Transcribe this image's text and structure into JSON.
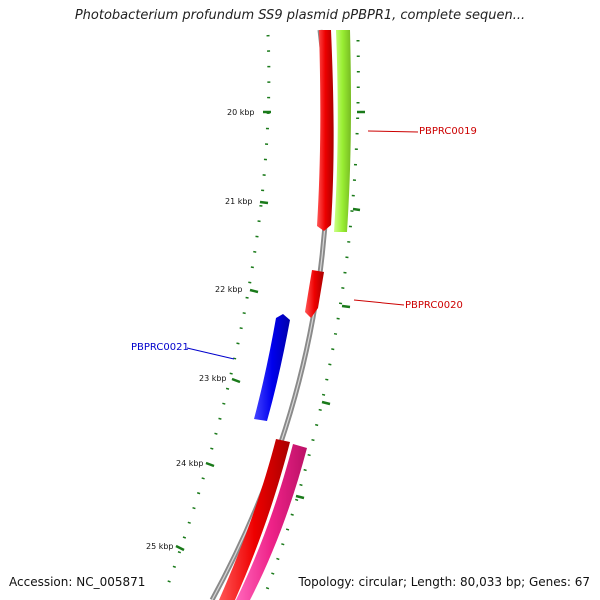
{
  "title": "Photobacterium profundum SS9 plasmid pPBPR1, complete sequen...",
  "accession": "Accession: NC_005871",
  "topology": "Topology: circular; Length: 80,033 bp; Genes: 67",
  "ticks": [
    {
      "label": "20 kbp"
    },
    {
      "label": "21 kbp"
    },
    {
      "label": "22 kbp"
    },
    {
      "label": "23 kbp"
    },
    {
      "label": "24 kbp"
    },
    {
      "label": "25 kbp"
    }
  ],
  "genes": [
    {
      "label": "PBPRC0019",
      "color": "#cc0000"
    },
    {
      "label": "PBPRC0020",
      "color": "#cc0000"
    },
    {
      "label": "PBPRC0021",
      "color": "#0000cc"
    }
  ],
  "colors": {
    "backbone": "#8a8a8a",
    "ticks": "#1a7a1a",
    "cds": "#ee0000",
    "cds_reverse": "#0000ee",
    "orf_green": "#99ee33",
    "orf_pink": "#ee2288"
  }
}
